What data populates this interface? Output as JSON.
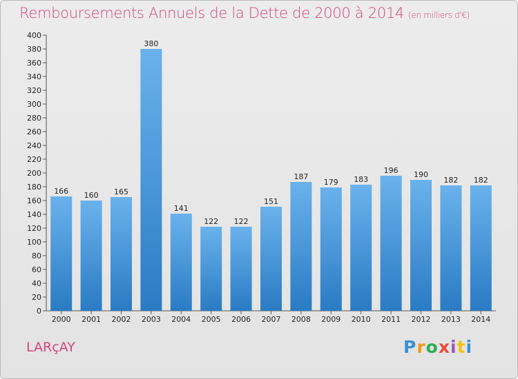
{
  "title": "Remboursements Annuels de la Dette de 2000 à 2014",
  "subtitle": "(en milliers d'€)",
  "commune": "LARçAY",
  "logo": {
    "letters": [
      "P",
      "r",
      "o",
      "x",
      "i",
      "t",
      "i"
    ],
    "colors": [
      "#3a8fd6",
      "#f39c12",
      "#2eae4f",
      "#e74c3c",
      "#9b59b6",
      "#f1c40f",
      "#3a8fd6"
    ]
  },
  "colors": {
    "accent": "#d2457a",
    "bar_light": "#6ab2ec",
    "bar_dark": "#2a7bc4"
  },
  "chart_data": {
    "type": "bar",
    "categories": [
      "2000",
      "2001",
      "2002",
      "2003",
      "2004",
      "2005",
      "2006",
      "2007",
      "2008",
      "2009",
      "2010",
      "2011",
      "2012",
      "2013",
      "2014"
    ],
    "values": [
      166,
      160,
      165,
      380,
      141,
      122,
      122,
      151,
      187,
      179,
      183,
      196,
      190,
      182,
      182
    ],
    "title": "Remboursements Annuels de la Dette de 2000 à 2014",
    "xlabel": "",
    "ylabel": "",
    "ylim": [
      0,
      400
    ],
    "ytick_step": 20,
    "grid": false,
    "legend": "none"
  }
}
